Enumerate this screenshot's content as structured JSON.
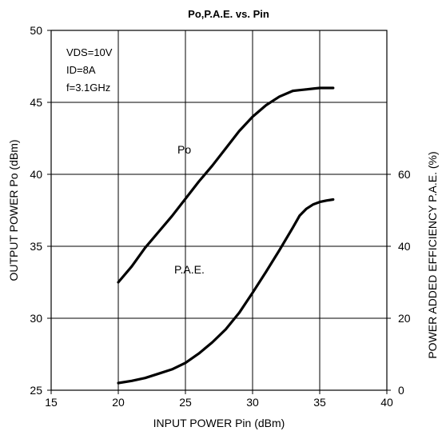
{
  "chart_data": {
    "type": "line",
    "title": "Po,P.A.E. vs. Pin",
    "xlabel": "INPUT POWER Pin (dBm)",
    "ylabel": "OUTPUT POWER Po (dBm)",
    "y2label": "POWER ADDED EFFICIENCY P.A.E. (%)",
    "xlim": [
      15,
      40
    ],
    "ylim": [
      25,
      50
    ],
    "y2lim": [
      0,
      100
    ],
    "x_ticks": [
      "15",
      "20",
      "25",
      "30",
      "35",
      "40"
    ],
    "y_ticks": [
      "25",
      "30",
      "35",
      "40",
      "45",
      "50"
    ],
    "y2_ticks": [
      "0",
      "20",
      "40",
      "60"
    ],
    "grid": true,
    "annotations": [
      "VDS=10V",
      "ID=8A",
      "f=3.1GHz"
    ],
    "series": [
      {
        "name": "Po",
        "axis": "left",
        "x": [
          20,
          21,
          22,
          23,
          24,
          25,
          26,
          27,
          28,
          29,
          30,
          31,
          32,
          33,
          33.5,
          34,
          34.5,
          35,
          35.5,
          36
        ],
        "y": [
          32.5,
          33.6,
          34.9,
          36.0,
          37.1,
          38.3,
          39.5,
          40.6,
          41.8,
          43.0,
          44.0,
          44.8,
          45.4,
          45.8,
          45.85,
          45.9,
          45.95,
          46.0,
          46.0,
          46.0
        ]
      },
      {
        "name": "P.A.E.",
        "axis": "right",
        "x": [
          20,
          21,
          22,
          23,
          24,
          25,
          26,
          27,
          28,
          29,
          30,
          31,
          32,
          33,
          33.5,
          34,
          34.5,
          35,
          35.5,
          36
        ],
        "y": [
          2,
          2.6,
          3.4,
          4.6,
          5.8,
          7.6,
          10.2,
          13.3,
          16.9,
          21.5,
          27.1,
          32.9,
          38.9,
          45.2,
          48.5,
          50.4,
          51.6,
          52.3,
          52.7,
          53.0
        ]
      }
    ]
  }
}
